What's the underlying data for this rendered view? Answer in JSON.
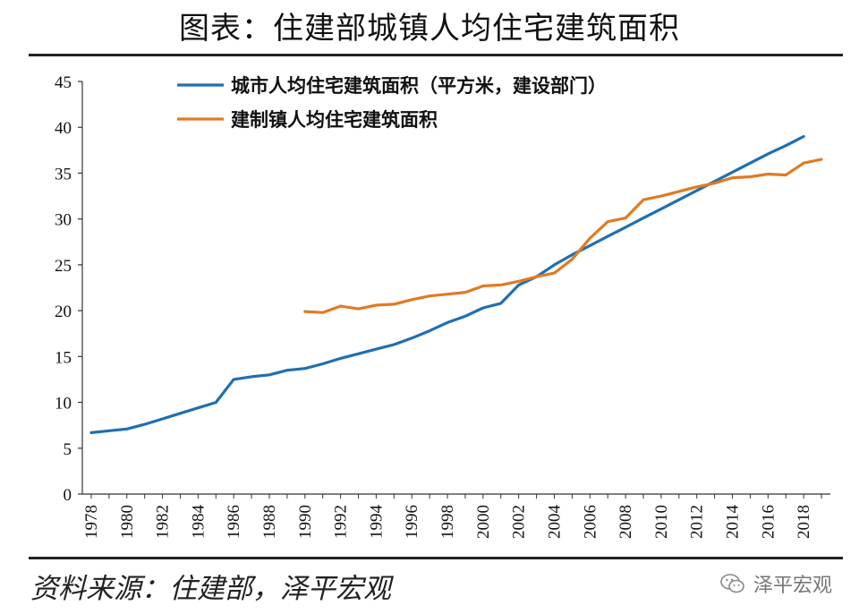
{
  "header": {
    "title": "图表：住建部城镇人均住宅建筑面积"
  },
  "footer": {
    "source": "资料来源：住建部，泽平宏观",
    "watermark": "泽平宏观"
  },
  "icons": {
    "watermark_icon": "wechat-logo-icon"
  },
  "chart_data": {
    "type": "line",
    "title": "图表：住建部城镇人均住宅建筑面积",
    "xlabel": "",
    "ylabel": "",
    "xlim": [
      1978,
      2019
    ],
    "ylim": [
      0,
      45
    ],
    "yticks": [
      0,
      5,
      10,
      15,
      20,
      25,
      30,
      35,
      40,
      45
    ],
    "xticks": [
      "1978",
      "1980",
      "1982",
      "1984",
      "1986",
      "1988",
      "1990",
      "1992",
      "1994",
      "1996",
      "1998",
      "2000",
      "2002",
      "2004",
      "2006",
      "2008",
      "2010",
      "2012",
      "2014",
      "2016",
      "2018"
    ],
    "grid": false,
    "legend_position": "top-left",
    "series": [
      {
        "name": "城市人均住宅建筑面积（平方米，建设部门）",
        "color": "#1f6fb2",
        "x": [
          1978,
          1979,
          1980,
          1981,
          1982,
          1983,
          1984,
          1985,
          1986,
          1987,
          1988,
          1989,
          1990,
          1991,
          1992,
          1993,
          1994,
          1995,
          1996,
          1997,
          1998,
          1999,
          2000,
          2001,
          2002,
          2003,
          2004,
          2005,
          2006,
          2007,
          2008,
          2009,
          2010,
          2011,
          2012,
          2013,
          2014,
          2015,
          2016,
          2017,
          2018
        ],
        "values": [
          6.7,
          6.9,
          7.1,
          7.6,
          8.2,
          8.8,
          9.4,
          10.0,
          12.5,
          12.8,
          13.0,
          13.5,
          13.7,
          14.2,
          14.8,
          15.3,
          15.8,
          16.3,
          17.0,
          17.8,
          18.7,
          19.4,
          20.3,
          20.8,
          22.8,
          23.7,
          25.0,
          26.1,
          27.1,
          28.1,
          29.1,
          30.1,
          31.1,
          32.1,
          33.1,
          34.1,
          35.1,
          36.1,
          37.1,
          38.0,
          39.0
        ]
      },
      {
        "name": "建制镇人均住宅建筑面积",
        "color": "#e07b22",
        "x": [
          1990,
          1991,
          1992,
          1993,
          1994,
          1995,
          1996,
          1997,
          1998,
          1999,
          2000,
          2001,
          2002,
          2003,
          2004,
          2005,
          2006,
          2007,
          2008,
          2009,
          2010,
          2011,
          2012,
          2013,
          2014,
          2015,
          2016,
          2017,
          2018,
          2019
        ],
        "values": [
          19.9,
          19.8,
          20.5,
          20.2,
          20.6,
          20.7,
          21.2,
          21.6,
          21.8,
          22.0,
          22.7,
          22.8,
          23.2,
          23.7,
          24.1,
          25.6,
          27.9,
          29.7,
          30.1,
          32.1,
          32.5,
          33.0,
          33.5,
          33.9,
          34.5,
          34.6,
          34.9,
          34.8,
          36.1,
          36.5
        ]
      }
    ]
  }
}
